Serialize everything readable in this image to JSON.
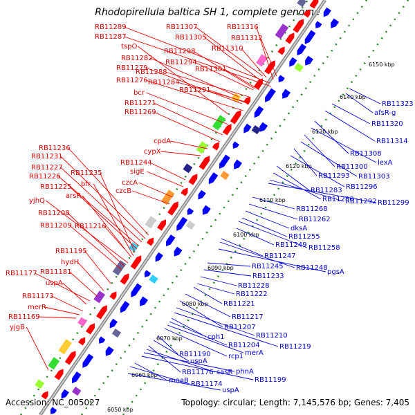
{
  "title": "Rhodopirellula baltica SH 1, complete genome",
  "footer": {
    "accession": "Accession: NC_005027",
    "summary": "Topology: circular; Length: 7,145,576 bp; Genes: 7,405"
  },
  "colors": {
    "forward": "#ff0000",
    "reverse": "#0000ff",
    "backbone": "#888888",
    "dots": "#228822"
  },
  "ticks": [
    "6050 kbp",
    "6060 kbp",
    "6070 kbp",
    "6080 kbp",
    "6090 kbp",
    "6100 kbp",
    "6110 kbp",
    "6120 kbp",
    "6130 kbp",
    "6140 kbp",
    "6150 kbp"
  ],
  "left_labels": [
    "RB11289",
    "RB11287",
    "tspO",
    "RB11282",
    "RB11279",
    "RB11276",
    "bcr",
    "RB11271",
    "RB11269",
    "RB11307",
    "RB11305",
    "RB11298",
    "RB11294",
    "RB11288",
    "RB11284",
    "RB11291",
    "RB11316",
    "RB11312",
    "RB11310",
    "RB11301",
    "cpdA",
    "cypX",
    "RB11244",
    "sigE",
    "czcA",
    "czcB",
    "RB11236",
    "RB11231",
    "RB11227",
    "RB11226",
    "RB11225",
    "RB11235",
    "bfr",
    "arsR",
    "yjhQ",
    "RB11208",
    "RB11209",
    "RB11216",
    "RB11195",
    "hydH",
    "RB11181",
    "RB11177",
    "uspA",
    "RB11173",
    "merR",
    "RB11169",
    "yjgB"
  ],
  "right_labels": [
    "RB11323",
    "afsR-g",
    "RB11320",
    "RB11314",
    "RB11308",
    "lexA",
    "RB11300",
    "RB11303",
    "RB11293",
    "RB11296",
    "RB11283",
    "RB11280",
    "RB11292",
    "RB11299",
    "RB11268",
    "RB11262",
    "dksA",
    "RB11255",
    "RB11258",
    "RB11249",
    "RB11247",
    "RB11248",
    "pgsA",
    "RB11245",
    "RB11233",
    "RB11228",
    "RB11222",
    "RB11221",
    "RB11217",
    "RB11207",
    "RB11210",
    "RB11219",
    "cph1",
    "RB11204",
    "merA",
    "rcp1",
    "RB11190",
    "uspA",
    "RB11176",
    "sasR",
    "phnA",
    "RB11199",
    "moaB",
    "RB11174",
    "uspA"
  ]
}
